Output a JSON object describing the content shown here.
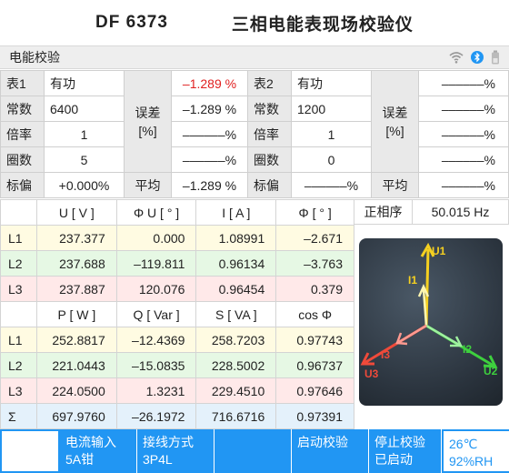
{
  "header": {
    "model": "DF 6373",
    "name": "三相电能表现场校验仪"
  },
  "section": {
    "title": "电能校验"
  },
  "icons": {
    "wifi": "wifi-icon",
    "bluetooth": "bluetooth-icon",
    "battery": "battery-icon"
  },
  "cal": {
    "m1": {
      "label": "表1",
      "type": "有功",
      "const_label": "常数",
      "const": "6400",
      "ratio_label": "倍率",
      "ratio": "1",
      "circles_label": "圈数",
      "circles": "5",
      "dev_label": "标偏",
      "dev": "+0.000%"
    },
    "m2": {
      "label": "表2",
      "type": "有功",
      "const_label": "常数",
      "const": "1200",
      "ratio_label": "倍率",
      "ratio": "1",
      "circles_label": "圈数",
      "circles": "0",
      "dev_label": "标偏",
      "dev": "––––––%"
    },
    "err_label": "误差",
    "err_unit": "[%]",
    "avg_label": "平均",
    "err1": [
      "–1.289 %",
      "–1.289 %",
      "––––––%",
      "––––––%"
    ],
    "avg1": "–1.289 %",
    "err2": [
      "––––––%",
      "––––––%",
      "––––––%",
      "––––––%"
    ],
    "avg2": "––––––%"
  },
  "meas": {
    "h1": [
      "U [ V ]",
      "Φ U [ ° ]",
      "I [ A ]",
      "Φ [ ° ]"
    ],
    "h2": [
      "P [ W ]",
      "Q [ Var ]",
      "S [ VA ]",
      "cos Φ"
    ],
    "rows1": [
      {
        "ph": "L1",
        "v": [
          "237.377",
          "0.000",
          "1.08991",
          "–2.671"
        ]
      },
      {
        "ph": "L2",
        "v": [
          "237.688",
          "–119.811",
          "0.96134",
          "–3.763"
        ]
      },
      {
        "ph": "L3",
        "v": [
          "237.887",
          "120.076",
          "0.96454",
          "0.379"
        ]
      }
    ],
    "rows2": [
      {
        "ph": "L1",
        "v": [
          "252.8817",
          "–12.4369",
          "258.7203",
          "0.97743"
        ]
      },
      {
        "ph": "L2",
        "v": [
          "221.0443",
          "–15.0835",
          "228.5002",
          "0.96737"
        ]
      },
      {
        "ph": "L3",
        "v": [
          "224.0500",
          "1.3231",
          "229.4510",
          "0.97646"
        ]
      },
      {
        "ph": "Σ",
        "v": [
          "697.9760",
          "–26.1972",
          "716.6716",
          "0.97391"
        ]
      }
    ]
  },
  "phase": {
    "seq": "正相序",
    "freq": "50.015 Hz"
  },
  "vectors": {
    "U1": "U1",
    "U2": "U2",
    "U3": "U3",
    "I1": "I1",
    "I2": "I2",
    "I3": "I3"
  },
  "colors": {
    "l1": "#f5d020",
    "l2": "#3ed03e",
    "l3": "#ef4a3a",
    "accent": "#2196f3"
  },
  "bottom": {
    "input_label": "电流输入",
    "input_value": "5A钳",
    "wiring_label": "接线方式",
    "wiring_value": "3P4L",
    "start_label": "启动校验",
    "stop_label": "停止校验",
    "status": "已启动",
    "temp": "26℃",
    "humidity": "92%RH"
  }
}
